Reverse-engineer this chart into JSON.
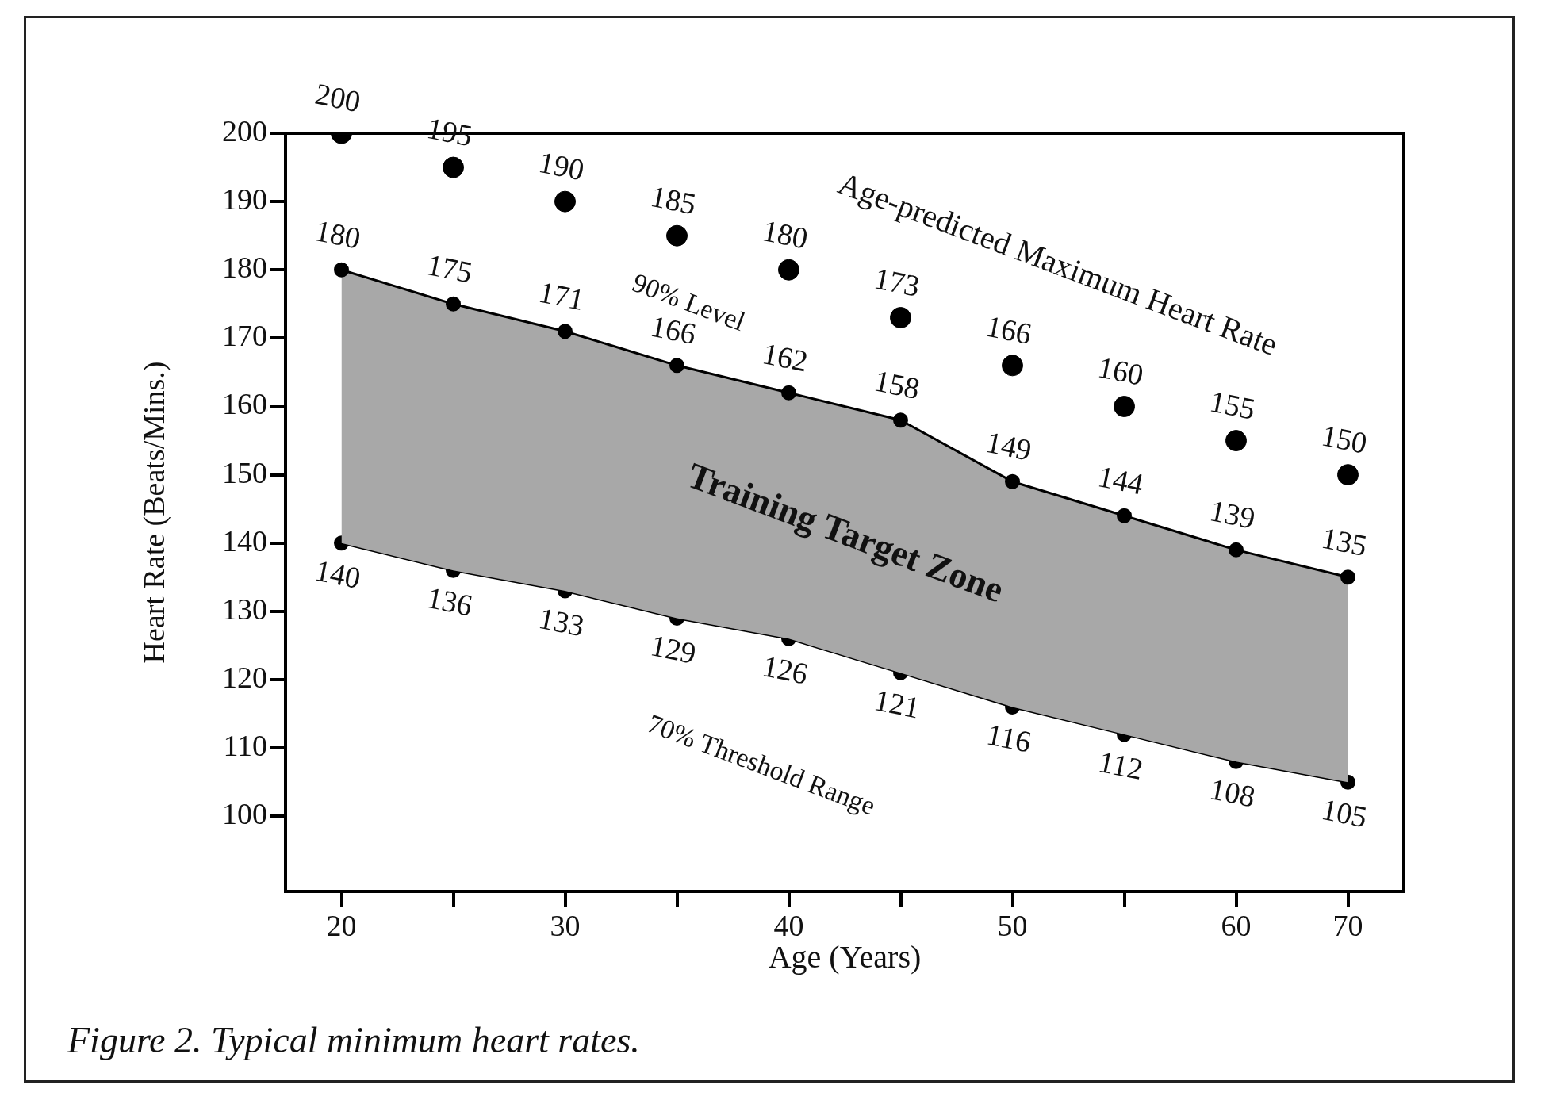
{
  "chart_data": {
    "type": "line",
    "xlabel": "Age (Years)",
    "ylabel": "Heart Rate (Beats/Mins.)",
    "categories": [
      "20",
      null,
      "30",
      null,
      "40",
      null,
      "50",
      null,
      "60",
      "70"
    ],
    "series": [
      {
        "type": "scatter",
        "color": "#000000",
        "values": [
          200,
          195,
          190,
          185,
          180,
          173,
          166,
          160,
          155,
          150
        ]
      },
      {
        "type": "area",
        "color": "#a8a8a8",
        "values": [
          180,
          175,
          171,
          166,
          162,
          158,
          149,
          144,
          139,
          135
        ]
      },
      {
        "type": "line",
        "color": "#000000",
        "values": [
          140,
          136,
          133,
          129,
          126,
          121,
          116,
          112,
          108,
          105
        ]
      }
    ],
    "ylim": [
      89,
      200
    ],
    "yticks": [
      100,
      110,
      120,
      130,
      140,
      150,
      160,
      170,
      180,
      190,
      200
    ],
    "grid": false,
    "legend": false,
    "marker": "circle",
    "line_style": "solid",
    "data_labels": true,
    "annotations": [
      "Age-predicted Maximum Heart Rate",
      "90% Level",
      "Training Target Zone",
      "70% Threshold Range",
      "Figure 2. Typical minimum heart rates."
    ]
  }
}
